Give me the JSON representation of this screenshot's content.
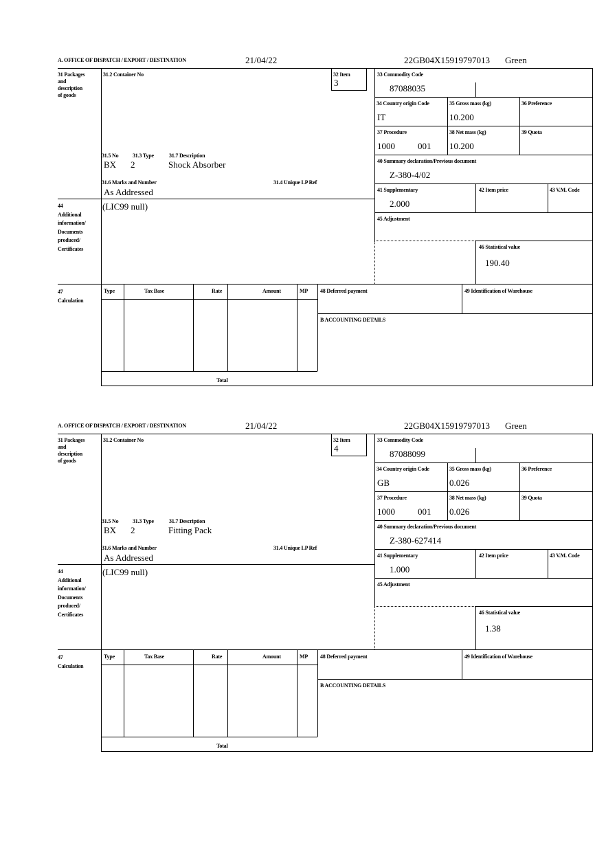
{
  "labels": {
    "office": "A.  OFFICE OF DISPATCH / EXPORT / DESTINATION",
    "box31": "31 Packages\nand\ndescription\nof goods",
    "container_no": "31.2 Container No",
    "item": "32 Item",
    "commodity_code": "33 Commodity Code",
    "country_origin": "34 Country origin Code",
    "gross_mass": "35 Gross mass (kg)",
    "preference": "36 Preference",
    "procedure": "37 Procedure",
    "net_mass": "38 Net mass (kg)",
    "quota": "39 Quota",
    "summary_decl": "40 Summary declaration/Previous document",
    "no": "31.5 No",
    "type": "31.3 Type",
    "description": "31.7 Description",
    "marks": "31.6 Marks and Number",
    "unique_lp": "31.4 Unique LP Ref",
    "supplementary": "41 Supplementary",
    "item_price": "42 Item price",
    "vm_code": "43 V.M. Code",
    "adjustment": "45 Adjustment",
    "statistical": "46 Statistical value",
    "box44": "44\nAdditional\ninformation/\nDocuments\nproduced/\nCertificates",
    "box47": "47\nCalculation",
    "calc_cols": [
      "Type",
      "Tax Base",
      "Rate",
      "Amount",
      "MP"
    ],
    "total": "Total",
    "deferred": "48 Deferred payment",
    "warehouse": "49 Identification of Warehouse",
    "accounting": "B ACCOUNTING DETAILS"
  },
  "forms": [
    {
      "date": "21/04/22",
      "mrn": "22GB04X15919797013",
      "route": "Green",
      "item": "3",
      "commodity_code": "87088035",
      "country_origin": "IT",
      "gross_mass": "10.200",
      "procedure": "1000",
      "procedure_add": "001",
      "net_mass": "10.200",
      "summary_decl": "Z-380-4/02",
      "pkg_no": "BX",
      "pkg_type": "2",
      "description": "Shock Absorber",
      "marks": "As Addressed",
      "supplementary": "2.000",
      "statistical": "190.40",
      "additional_info": "(LIC99 null)"
    },
    {
      "date": "21/04/22",
      "mrn": "22GB04X15919797013",
      "route": "Green",
      "item": "4",
      "commodity_code": "87088099",
      "country_origin": "GB",
      "gross_mass": "0.026",
      "procedure": "1000",
      "procedure_add": "001",
      "net_mass": "0.026",
      "summary_decl": "Z-380-627414",
      "pkg_no": "BX",
      "pkg_type": "2",
      "description": "Fitting Pack",
      "marks": "As Addressed",
      "supplementary": "1.000",
      "statistical": "1.38",
      "additional_info": "(LIC99 null)"
    }
  ]
}
